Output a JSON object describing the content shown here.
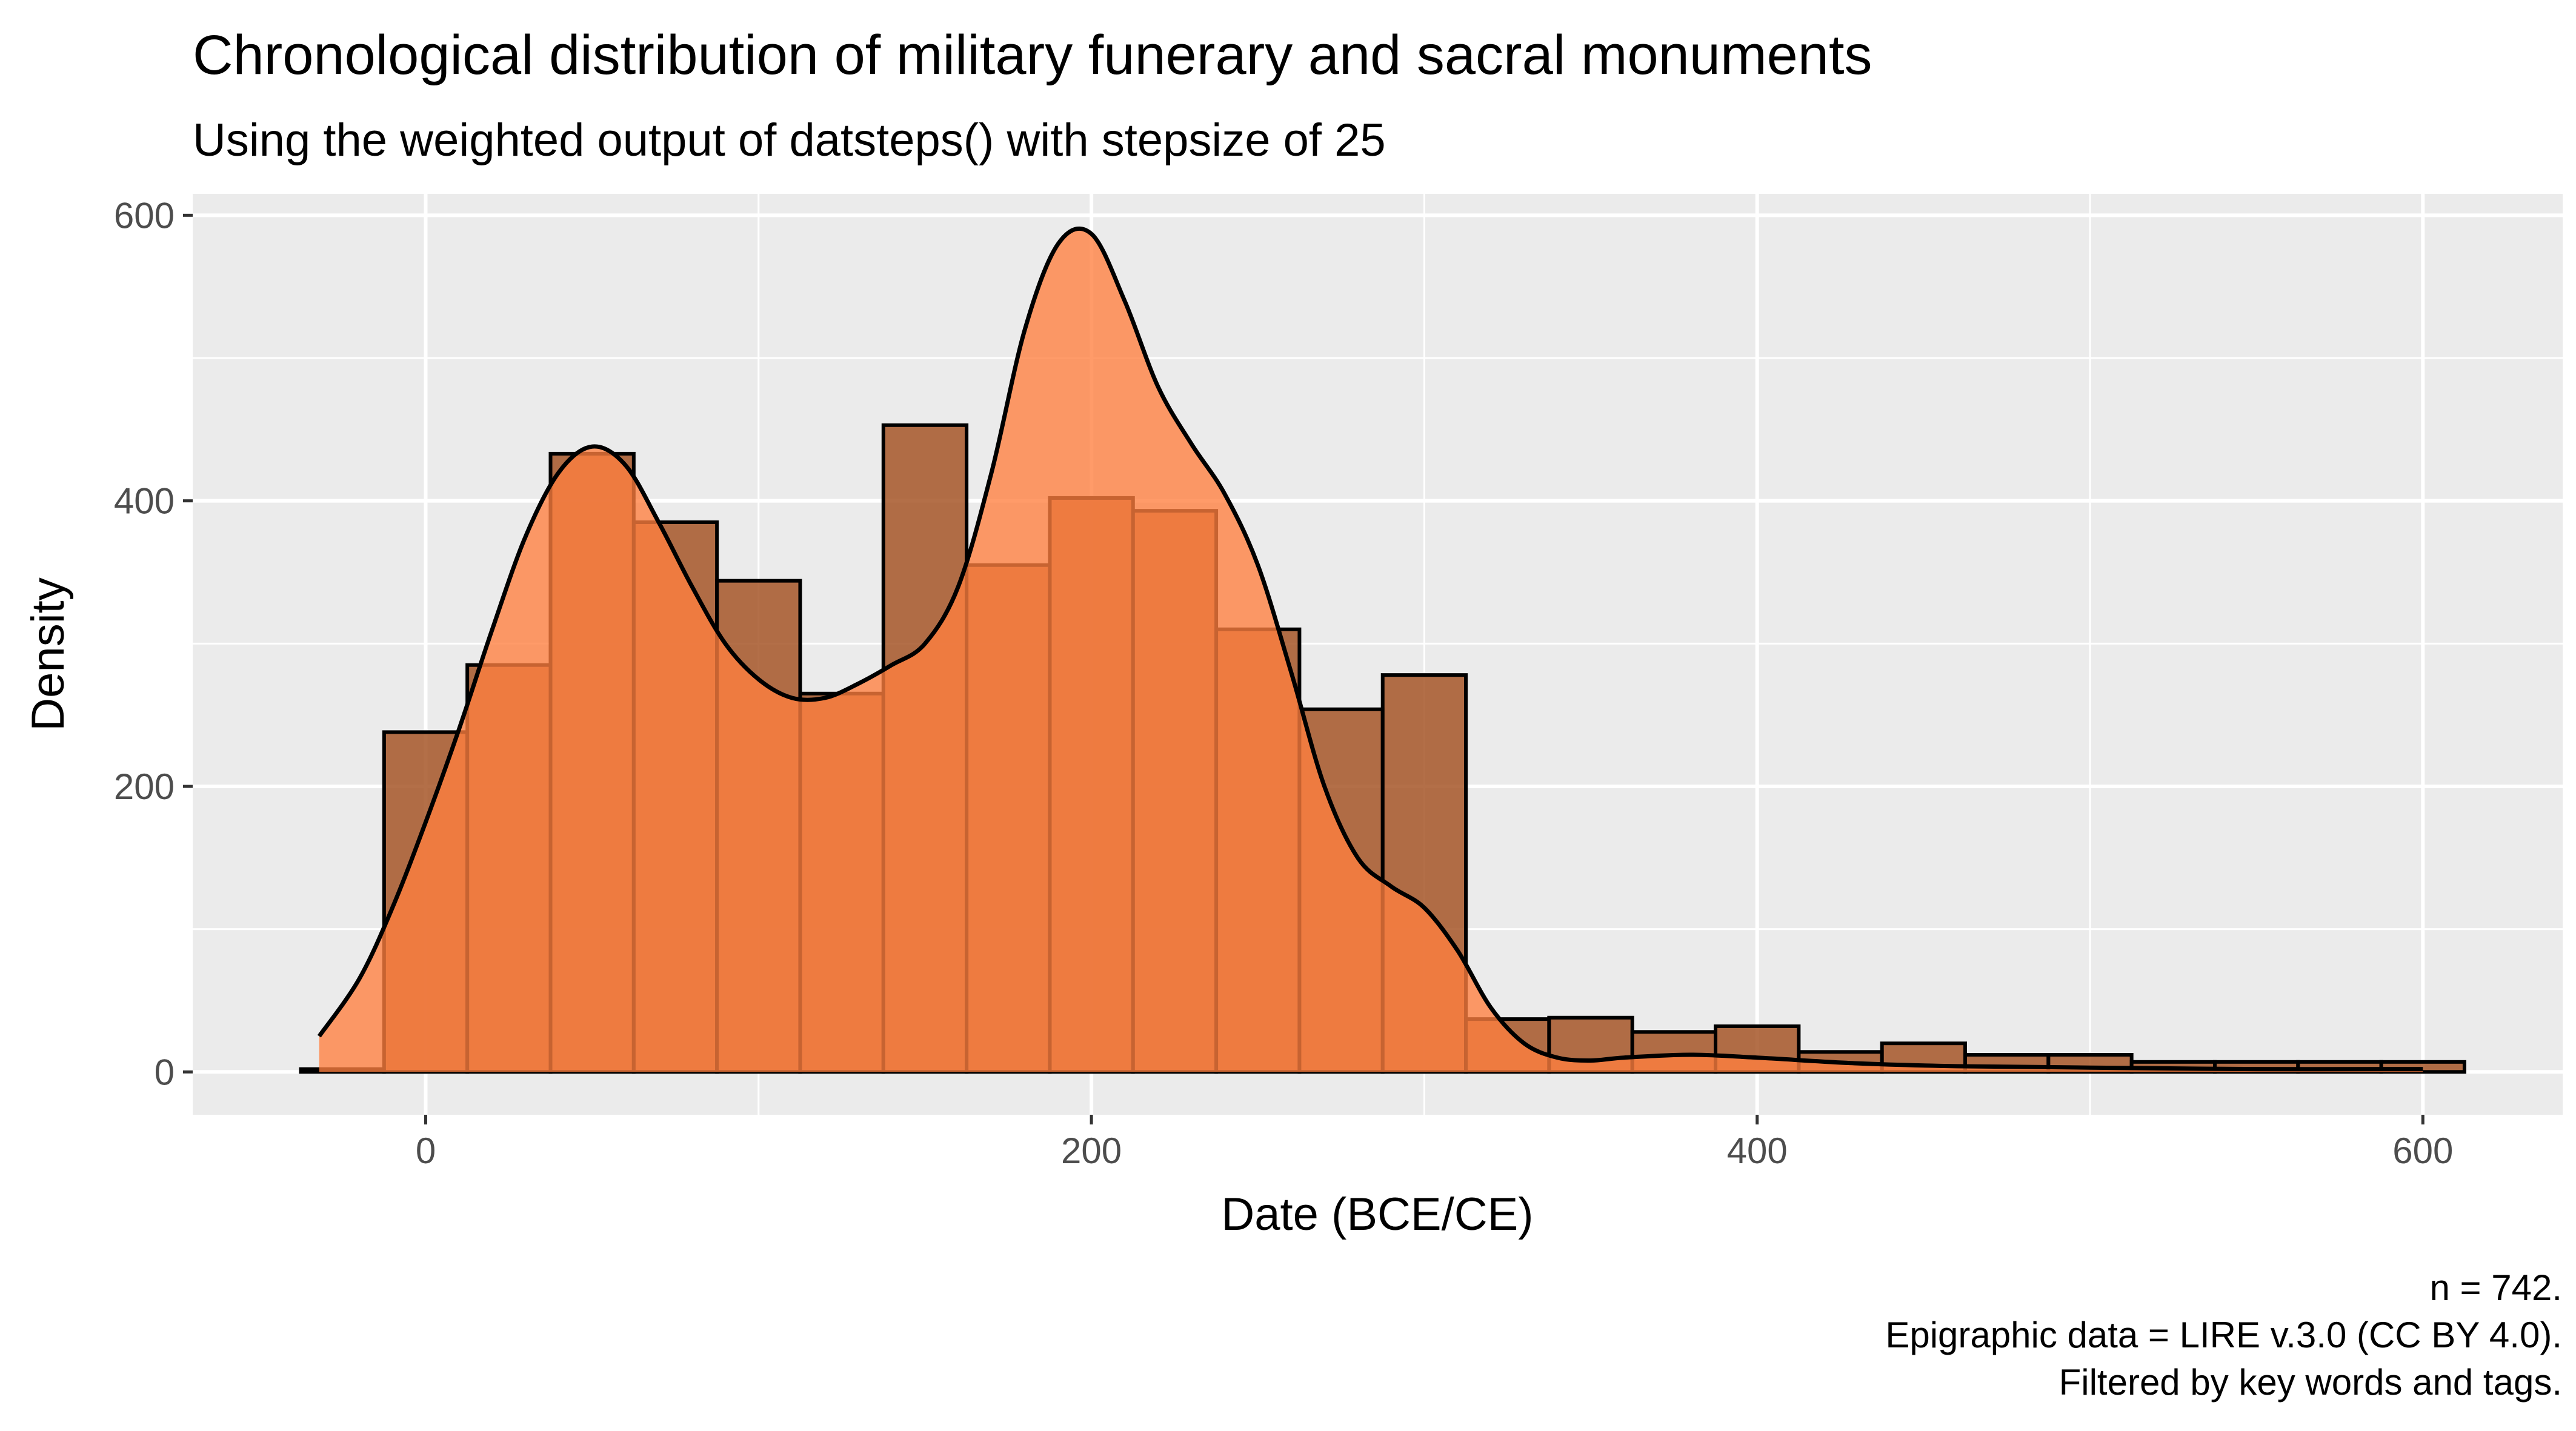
{
  "chart_data": {
    "type": "bar",
    "title": "Chronological distribution of military funerary and sacral monuments",
    "subtitle": "Using the weighted output of datsteps() with stepsize of 25",
    "xlabel": "Date (BCE/CE)",
    "ylabel": "Density",
    "caption": [
      "n = 742.",
      "Epigraphic data = LIRE v.3.0 (CC BY 4.0).",
      "Filtered by key words and tags."
    ],
    "xlim": [
      -70,
      642
    ],
    "ylim": [
      -30,
      615
    ],
    "x_ticks": [
      0,
      200,
      400,
      600
    ],
    "y_ticks": [
      0,
      200,
      400,
      600
    ],
    "grid": true,
    "legend": "none",
    "colors": {
      "panel": "#EBEBEB",
      "grid": "#FFFFFF",
      "histogram_fill": "#A65628",
      "density_fill": "#FF7F3F",
      "outline": "#000000"
    },
    "series": [
      {
        "type": "histogram",
        "bin_width": 25,
        "bins": [
          {
            "x0": -37.5,
            "x1": -12.5,
            "y": 2
          },
          {
            "x0": -12.5,
            "x1": 12.5,
            "y": 238
          },
          {
            "x0": 12.5,
            "x1": 37.5,
            "y": 285
          },
          {
            "x0": 37.5,
            "x1": 62.5,
            "y": 433
          },
          {
            "x0": 62.5,
            "x1": 87.5,
            "y": 385
          },
          {
            "x0": 87.5,
            "x1": 112.5,
            "y": 344
          },
          {
            "x0": 112.5,
            "x1": 137.5,
            "y": 265
          },
          {
            "x0": 137.5,
            "x1": 162.5,
            "y": 453
          },
          {
            "x0": 162.5,
            "x1": 187.5,
            "y": 355
          },
          {
            "x0": 187.5,
            "x1": 212.5,
            "y": 402
          },
          {
            "x0": 212.5,
            "x1": 237.5,
            "y": 393
          },
          {
            "x0": 237.5,
            "x1": 262.5,
            "y": 310
          },
          {
            "x0": 262.5,
            "x1": 287.5,
            "y": 254
          },
          {
            "x0": 287.5,
            "x1": 312.5,
            "y": 278
          },
          {
            "x0": 312.5,
            "x1": 337.5,
            "y": 37
          },
          {
            "x0": 337.5,
            "x1": 362.5,
            "y": 38
          },
          {
            "x0": 362.5,
            "x1": 387.5,
            "y": 28
          },
          {
            "x0": 387.5,
            "x1": 412.5,
            "y": 32
          },
          {
            "x0": 412.5,
            "x1": 437.5,
            "y": 14
          },
          {
            "x0": 437.5,
            "x1": 462.5,
            "y": 20
          },
          {
            "x0": 462.5,
            "x1": 487.5,
            "y": 12
          },
          {
            "x0": 487.5,
            "x1": 512.5,
            "y": 12
          },
          {
            "x0": 512.5,
            "x1": 537.5,
            "y": 7
          },
          {
            "x0": 537.5,
            "x1": 562.5,
            "y": 7
          },
          {
            "x0": 562.5,
            "x1": 587.5,
            "y": 7
          },
          {
            "x0": 587.5,
            "x1": 612.5,
            "y": 7
          }
        ]
      },
      {
        "type": "density",
        "x": [
          -32,
          -20,
          -10,
          0,
          10,
          20,
          30,
          40,
          50,
          60,
          70,
          80,
          90,
          100,
          110,
          120,
          130,
          140,
          150,
          160,
          170,
          180,
          190,
          200,
          210,
          220,
          230,
          240,
          250,
          260,
          270,
          280,
          290,
          300,
          310,
          320,
          330,
          340,
          350,
          360,
          380,
          400,
          430,
          460,
          500,
          550,
          600
        ],
        "y": [
          25,
          65,
          115,
          175,
          240,
          310,
          375,
          420,
          438,
          425,
          385,
          340,
          300,
          275,
          262,
          262,
          272,
          285,
          300,
          340,
          420,
          520,
          580,
          587,
          540,
          480,
          440,
          405,
          355,
          280,
          200,
          150,
          130,
          115,
          85,
          45,
          20,
          10,
          8,
          10,
          12,
          10,
          6,
          4,
          3,
          2,
          2
        ]
      }
    ]
  }
}
